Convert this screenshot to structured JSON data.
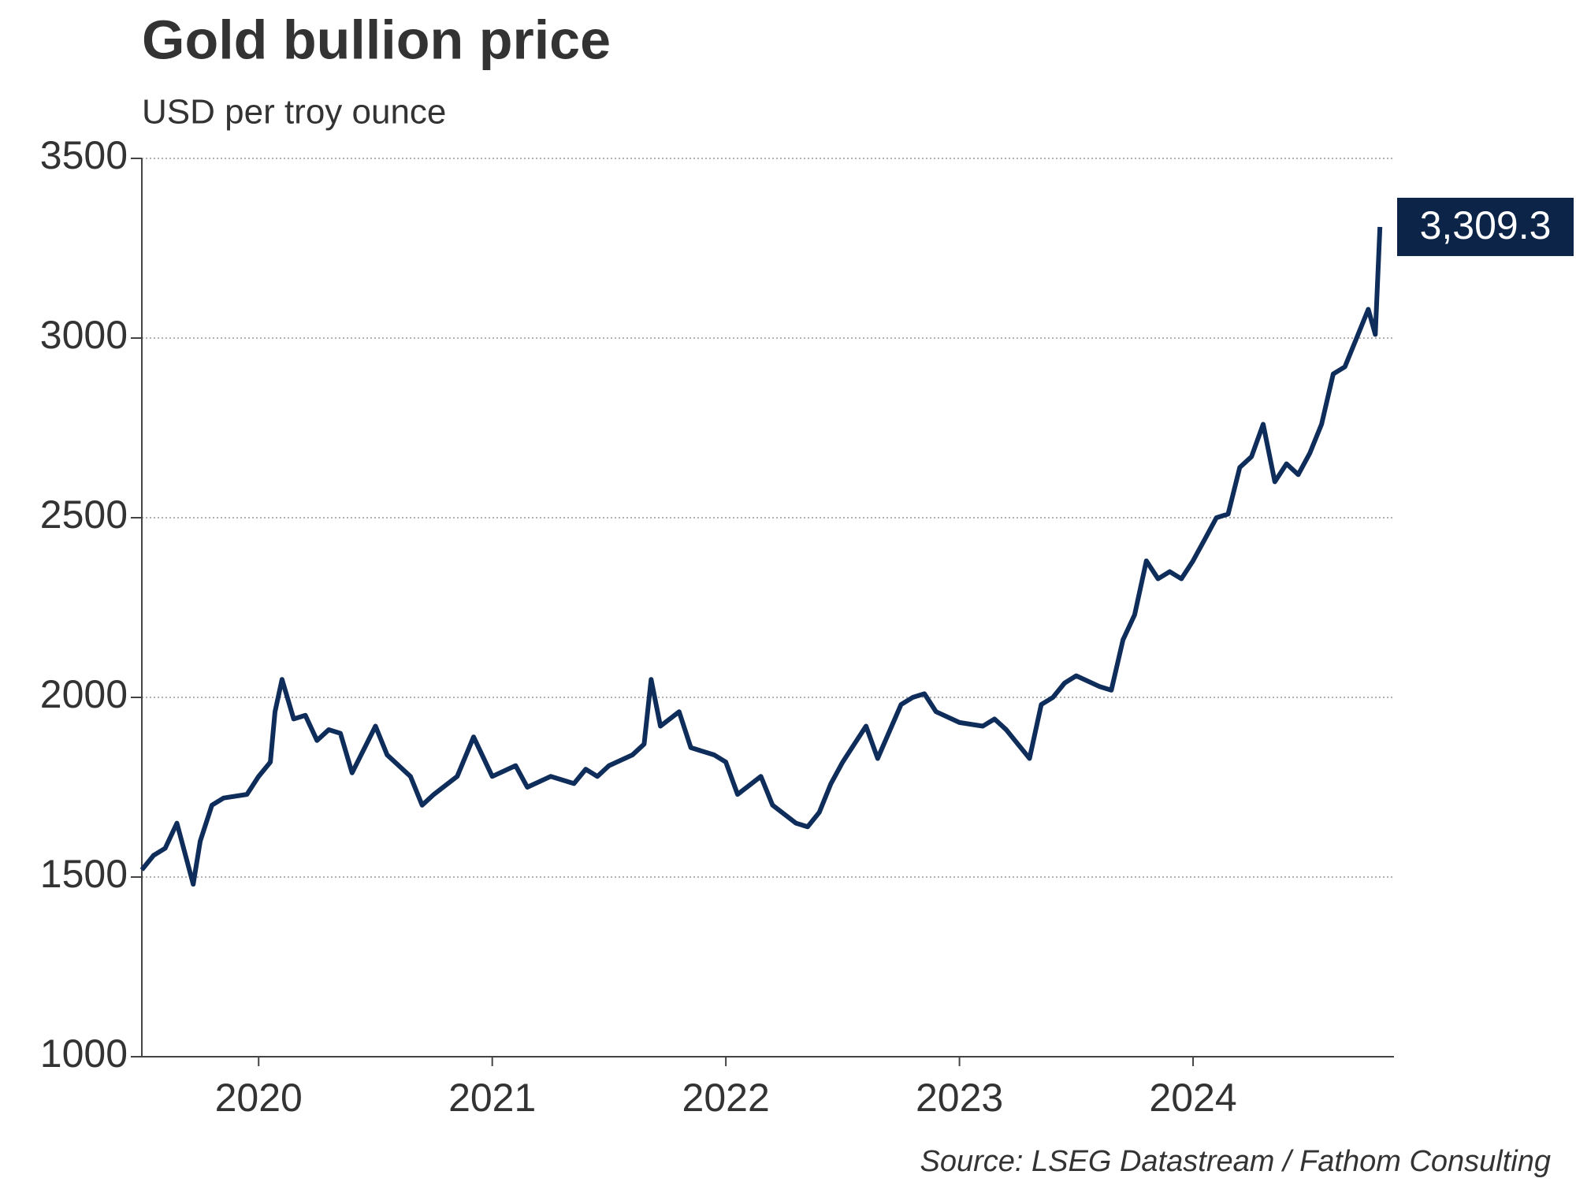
{
  "chart_data": {
    "type": "line",
    "title": "Gold bullion price",
    "subtitle": "USD per troy ounce",
    "source": "Source: LSEG Datastream / Fathom Consulting",
    "color": "#0f2d5a",
    "grid": true,
    "xlim": [
      2020,
      2025.36
    ],
    "xticks": [
      {
        "value": 2020.5,
        "label": "2020"
      },
      {
        "value": 2021.5,
        "label": "2021"
      },
      {
        "value": 2022.5,
        "label": "2022"
      },
      {
        "value": 2023.5,
        "label": "2023"
      },
      {
        "value": 2024.5,
        "label": "2024"
      }
    ],
    "ylim": [
      1000,
      3500
    ],
    "yticks": [
      1000,
      1500,
      2000,
      2500,
      3000,
      3500
    ],
    "x": [
      2020.0,
      2020.05,
      2020.1,
      2020.15,
      2020.22,
      2020.25,
      2020.3,
      2020.35,
      2020.45,
      2020.5,
      2020.55,
      2020.57,
      2020.6,
      2020.65,
      2020.7,
      2020.75,
      2020.8,
      2020.85,
      2020.9,
      2021.0,
      2021.05,
      2021.15,
      2021.2,
      2021.25,
      2021.35,
      2021.42,
      2021.5,
      2021.6,
      2021.65,
      2021.75,
      2021.85,
      2021.9,
      2021.95,
      2022.0,
      2022.1,
      2022.15,
      2022.18,
      2022.22,
      2022.3,
      2022.35,
      2022.45,
      2022.5,
      2022.55,
      2022.65,
      2022.7,
      2022.8,
      2022.85,
      2022.9,
      2022.95,
      2023.0,
      2023.05,
      2023.1,
      2023.15,
      2023.25,
      2023.3,
      2023.35,
      2023.4,
      2023.5,
      2023.6,
      2023.65,
      2023.7,
      2023.75,
      2023.8,
      2023.85,
      2023.9,
      2023.95,
      2024.0,
      2024.1,
      2024.15,
      2024.2,
      2024.25,
      2024.3,
      2024.35,
      2024.4,
      2024.45,
      2024.5,
      2024.55,
      2024.6,
      2024.65,
      2024.7,
      2024.75,
      2024.8,
      2024.85,
      2024.9,
      2024.95,
      2025.0,
      2025.05,
      2025.1,
      2025.15,
      2025.2,
      2025.25,
      2025.28,
      2025.3
    ],
    "values": [
      1520,
      1560,
      1580,
      1650,
      1480,
      1600,
      1700,
      1720,
      1730,
      1780,
      1820,
      1960,
      2050,
      1940,
      1950,
      1880,
      1910,
      1900,
      1790,
      1920,
      1840,
      1780,
      1700,
      1730,
      1780,
      1890,
      1780,
      1810,
      1750,
      1780,
      1760,
      1800,
      1780,
      1810,
      1840,
      1870,
      2050,
      1920,
      1960,
      1860,
      1840,
      1820,
      1730,
      1780,
      1700,
      1650,
      1640,
      1680,
      1760,
      1820,
      1870,
      1920,
      1830,
      1980,
      2000,
      2010,
      1960,
      1930,
      1920,
      1940,
      1910,
      1870,
      1830,
      1980,
      2000,
      2040,
      2060,
      2030,
      2020,
      2160,
      2230,
      2380,
      2330,
      2350,
      2330,
      2380,
      2440,
      2500,
      2510,
      2640,
      2670,
      2760,
      2600,
      2650,
      2620,
      2680,
      2760,
      2900,
      2920,
      3000,
      3080,
      3010,
      3309.3
    ],
    "value_labels": [
      null,
      null,
      null,
      null,
      null,
      null,
      null,
      null,
      null,
      null,
      null,
      null,
      null,
      null,
      null,
      null,
      null,
      null,
      null,
      null,
      null,
      null,
      null,
      null,
      null,
      null,
      null,
      null,
      null,
      null,
      null,
      null,
      null,
      null,
      null,
      null,
      null,
      null,
      null,
      null,
      null,
      null,
      null,
      null,
      null,
      null,
      null,
      null,
      null,
      null,
      null,
      null,
      null,
      null,
      null,
      null,
      null,
      null,
      null,
      null,
      null,
      null,
      null,
      null,
      null,
      null,
      null,
      null,
      null,
      null,
      null,
      null,
      null,
      null,
      null,
      null,
      null,
      null,
      null,
      null,
      null,
      null,
      null,
      null,
      null,
      null,
      null,
      null,
      null,
      null,
      null,
      null,
      "3,309.3"
    ]
  }
}
